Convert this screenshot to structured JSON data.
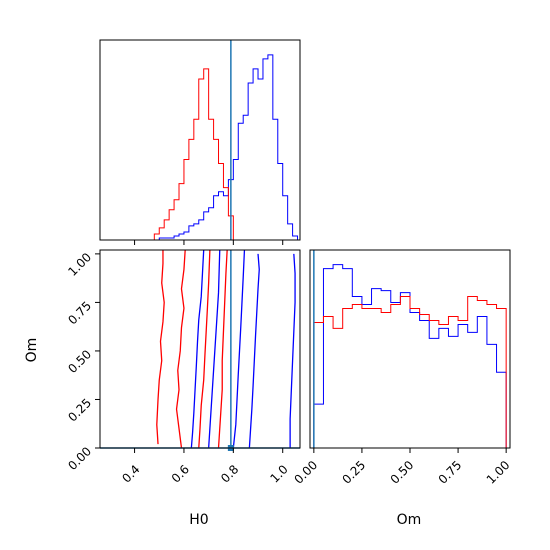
{
  "chart_data": {
    "type": "corner",
    "parameters": [
      "H0",
      "Om"
    ],
    "axis_labels": {
      "x_left": "H0",
      "x_right": "Om",
      "y_left": "Om"
    },
    "truth": {
      "H0": 0.79,
      "Om": 0.0
    },
    "colors": {
      "series_a": "#0000ff",
      "series_b": "#ff0000",
      "truth": "#1f77b4"
    },
    "panels": [
      {
        "id": "hist-H0",
        "type": "histogram",
        "xlim": [
          0.26,
          1.07
        ],
        "xticks": [
          0.4,
          0.6,
          0.8,
          1.0
        ],
        "show_tick_labels": false,
        "series": [
          {
            "color": "#0000ff",
            "edges": [
              0.48,
              0.5,
              0.52,
              0.54,
              0.56,
              0.58,
              0.6,
              0.62,
              0.64,
              0.66,
              0.68,
              0.7,
              0.72,
              0.74,
              0.76,
              0.78,
              0.8,
              0.82,
              0.84,
              0.86,
              0.88,
              0.9,
              0.92,
              0.94,
              0.96,
              0.98,
              1.0,
              1.02,
              1.04,
              1.06
            ],
            "counts": [
              0,
              1,
              1,
              1,
              2,
              3,
              4,
              7,
              8,
              10,
              14,
              16,
              22,
              24,
              22,
              30,
              40,
              58,
              62,
              78,
              85,
              80,
              90,
              92,
              60,
              38,
              22,
              8,
              2
            ]
          },
          {
            "color": "#ff0000",
            "edges": [
              0.48,
              0.5,
              0.52,
              0.54,
              0.56,
              0.58,
              0.6,
              0.62,
              0.64,
              0.66,
              0.68,
              0.7,
              0.72,
              0.74,
              0.76,
              0.78,
              0.8
            ],
            "counts": [
              3,
              6,
              10,
              15,
              20,
              28,
              40,
              50,
              60,
              80,
              85,
              60,
              50,
              38,
              26,
              12
            ]
          }
        ]
      },
      {
        "id": "contour-H0-Om",
        "type": "contour",
        "xlim": [
          0.26,
          1.07
        ],
        "ylim": [
          0.0,
          1.02
        ],
        "xticks": [
          0.4,
          0.6,
          0.8,
          1.0
        ],
        "xtick_labels": [
          "0.4",
          "0.6",
          "0.8",
          "1.0"
        ],
        "yticks": [
          0.0,
          0.25,
          0.5,
          0.75,
          1.0
        ],
        "ytick_labels": [
          "0.00",
          "0.25",
          "0.50",
          "0.75",
          "1.00"
        ],
        "contours": [
          {
            "color": "#ff0000",
            "points": [
              [
                0.515,
                1.02
              ],
              [
                0.515,
                0.95
              ],
              [
                0.51,
                0.85
              ],
              [
                0.52,
                0.75
              ],
              [
                0.515,
                0.65
              ],
              [
                0.505,
                0.55
              ],
              [
                0.51,
                0.45
              ],
              [
                0.5,
                0.35
              ],
              [
                0.495,
                0.25
              ],
              [
                0.49,
                0.12
              ],
              [
                0.495,
                0.02
              ]
            ]
          },
          {
            "color": "#ff0000",
            "points": [
              [
                0.74,
                0.0
              ],
              [
                0.745,
                0.1
              ],
              [
                0.75,
                0.2
              ],
              [
                0.755,
                0.3
              ],
              [
                0.755,
                0.45
              ],
              [
                0.76,
                0.6
              ],
              [
                0.765,
                0.75
              ],
              [
                0.77,
                0.9
              ],
              [
                0.775,
                1.02
              ]
            ]
          },
          {
            "color": "#ff0000",
            "points": [
              [
                0.605,
                1.02
              ],
              [
                0.6,
                0.92
              ],
              [
                0.59,
                0.82
              ],
              [
                0.6,
                0.72
              ],
              [
                0.59,
                0.62
              ],
              [
                0.585,
                0.5
              ],
              [
                0.575,
                0.4
              ],
              [
                0.58,
                0.3
              ],
              [
                0.57,
                0.2
              ],
              [
                0.58,
                0.1
              ],
              [
                0.59,
                0.0
              ]
            ]
          },
          {
            "color": "#ff0000",
            "points": [
              [
                0.66,
                0.0
              ],
              [
                0.665,
                0.1
              ],
              [
                0.67,
                0.22
              ],
              [
                0.68,
                0.35
              ],
              [
                0.685,
                0.48
              ],
              [
                0.69,
                0.6
              ],
              [
                0.695,
                0.72
              ],
              [
                0.7,
                0.85
              ],
              [
                0.705,
                1.02
              ]
            ]
          },
          {
            "color": "#0000ff",
            "points": [
              [
                0.68,
                1.02
              ],
              [
                0.675,
                0.9
              ],
              [
                0.67,
                0.78
              ],
              [
                0.66,
                0.66
              ],
              [
                0.655,
                0.55
              ],
              [
                0.65,
                0.42
              ],
              [
                0.645,
                0.3
              ],
              [
                0.64,
                0.18
              ],
              [
                0.635,
                0.08
              ],
              [
                0.63,
                0.0
              ]
            ]
          },
          {
            "color": "#0000ff",
            "points": [
              [
                0.8,
                0.0
              ],
              [
                0.81,
                0.12
              ],
              [
                0.815,
                0.25
              ],
              [
                0.82,
                0.38
              ],
              [
                0.825,
                0.5
              ],
              [
                0.83,
                0.62
              ],
              [
                0.835,
                0.75
              ],
              [
                0.84,
                0.88
              ],
              [
                0.845,
                1.02
              ]
            ]
          },
          {
            "color": "#0000ff",
            "points": [
              [
                0.865,
                0.0
              ],
              [
                0.87,
                0.1
              ],
              [
                0.875,
                0.2
              ],
              [
                0.88,
                0.32
              ],
              [
                0.885,
                0.45
              ],
              [
                0.89,
                0.58
              ],
              [
                0.895,
                0.7
              ],
              [
                0.9,
                0.82
              ],
              [
                0.905,
                0.92
              ],
              [
                0.9,
                1.0
              ]
            ]
          },
          {
            "color": "#0000ff",
            "points": [
              [
                1.03,
                0.0
              ],
              [
                1.03,
                0.15
              ],
              [
                1.035,
                0.3
              ],
              [
                1.04,
                0.45
              ],
              [
                1.045,
                0.6
              ],
              [
                1.05,
                0.75
              ],
              [
                1.05,
                0.9
              ],
              [
                1.045,
                1.0
              ]
            ]
          },
          {
            "color": "#0000ff",
            "points": [
              [
                0.7,
                0.0
              ],
              [
                0.71,
                0.2
              ],
              [
                0.72,
                0.4
              ],
              [
                0.73,
                0.6
              ],
              [
                0.74,
                0.8
              ],
              [
                0.745,
                1.02
              ]
            ]
          }
        ]
      },
      {
        "id": "hist-Om",
        "type": "histogram",
        "xlim": [
          -0.02,
          1.02
        ],
        "xticks": [
          0.0,
          0.25,
          0.5,
          0.75,
          1.0
        ],
        "xtick_labels": [
          "0.00",
          "0.25",
          "0.50",
          "0.75",
          "1.00"
        ],
        "series": [
          {
            "color": "#0000ff",
            "edges": [
              0.0,
              0.05,
              0.1,
              0.15,
              0.2,
              0.25,
              0.3,
              0.35,
              0.4,
              0.45,
              0.5,
              0.55,
              0.6,
              0.65,
              0.7,
              0.75,
              0.8,
              0.85,
              0.9,
              0.95,
              1.0
            ],
            "counts": [
              22,
              90,
              92,
              90,
              76,
              72,
              80,
              79,
              73,
              78,
              68,
              64,
              55,
              60,
              56,
              62,
              58,
              66,
              52,
              38
            ]
          },
          {
            "color": "#ff0000",
            "edges": [
              0.0,
              0.05,
              0.1,
              0.15,
              0.2,
              0.25,
              0.3,
              0.35,
              0.4,
              0.45,
              0.5,
              0.55,
              0.6,
              0.65,
              0.7,
              0.75,
              0.8,
              0.85,
              0.9,
              0.95,
              1.0
            ],
            "counts": [
              63,
              66,
              60,
              70,
              72,
              70,
              70,
              68,
              72,
              76,
              70,
              67,
              64,
              62,
              66,
              64,
              76,
              74,
              72,
              70
            ]
          }
        ]
      }
    ]
  }
}
